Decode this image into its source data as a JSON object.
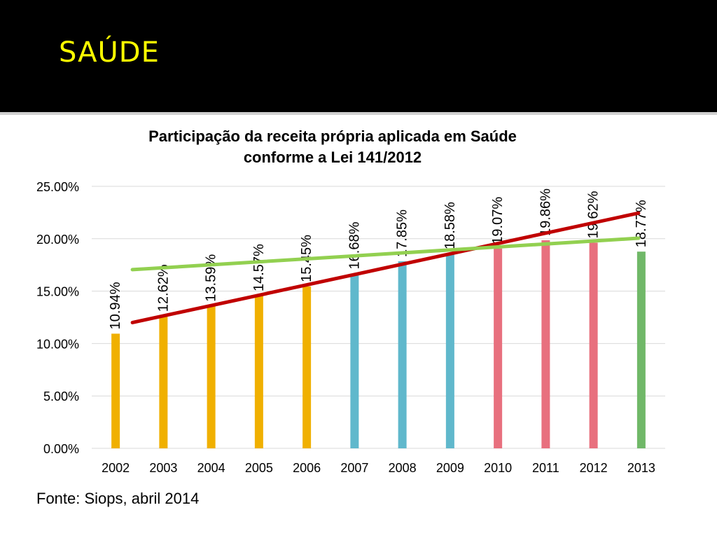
{
  "slide": {
    "title": "SAÚDE",
    "source": "Fonte: Siops, abril 2014"
  },
  "colors": {
    "header_background": "#000000",
    "title_color": "#FFFF00",
    "content_background": "#FFFFFF",
    "trend_linear": "#C00000",
    "trend_flat": "#92D050",
    "gridline": "#D9D9D9"
  },
  "chart_data": {
    "type": "bar",
    "title_lines": [
      "Participação da receita própria aplicada em Saúde",
      "conforme a Lei 141/2012"
    ],
    "xlabel": "",
    "ylabel": "",
    "categories": [
      "2002",
      "2003",
      "2004",
      "2005",
      "2006",
      "2007",
      "2008",
      "2009",
      "2010",
      "2011",
      "2012",
      "2013"
    ],
    "values": [
      10.94,
      12.62,
      13.59,
      14.57,
      15.45,
      16.68,
      17.85,
      18.58,
      19.07,
      19.86,
      19.62,
      18.77
    ],
    "data_labels": [
      "10.94%",
      "12.62%",
      "13.59%",
      "14.57%",
      "15.45%",
      "16.68%",
      "17.85%",
      "18.58%",
      "19.07%",
      "19.86%",
      "19.62%",
      "18.77%"
    ],
    "bar_colors": [
      "#F0B000",
      "#F0B000",
      "#F0B000",
      "#F0B000",
      "#F0B000",
      "#60B8CC",
      "#60B8CC",
      "#60B8CC",
      "#E8707E",
      "#E8707E",
      "#E8707E",
      "#70B868"
    ],
    "ylim": [
      0,
      25
    ],
    "yticks": [
      0,
      5,
      10,
      15,
      20,
      25
    ],
    "ytick_labels": [
      "0.00%",
      "5.00%",
      "10.00%",
      "15.00%",
      "20.00%",
      "25.00%"
    ],
    "grid": true,
    "legend": "none",
    "trendlines": [
      {
        "kind": "red",
        "color": "#C00000",
        "start": 12.0,
        "end": 22.45
      },
      {
        "kind": "green",
        "color": "#92D050",
        "start": 17.05,
        "end": 20.05
      }
    ]
  }
}
